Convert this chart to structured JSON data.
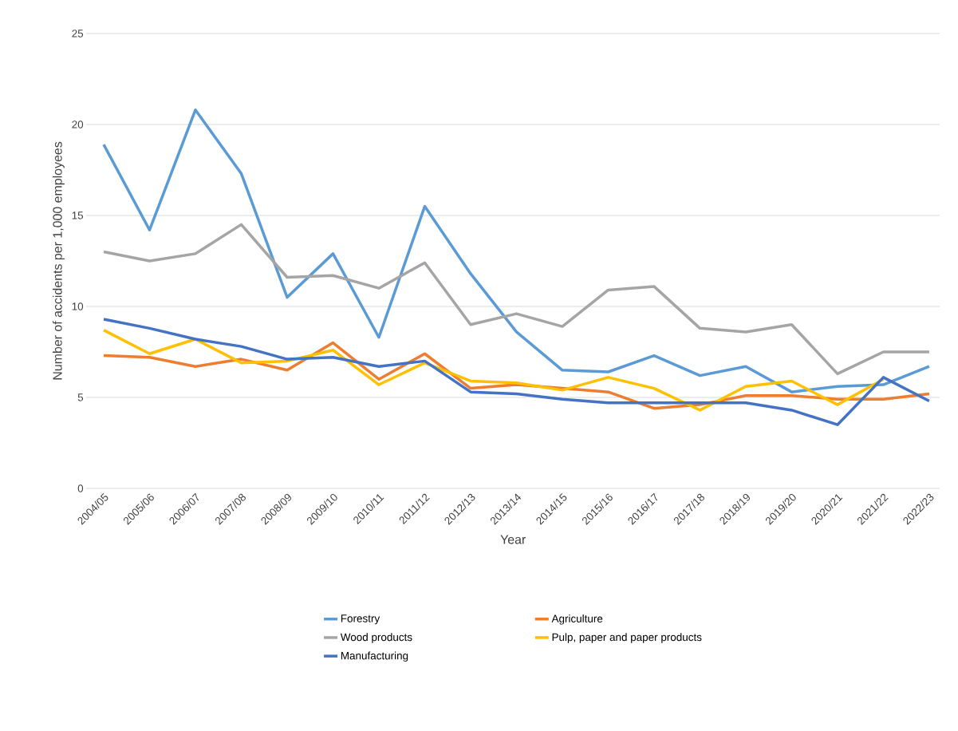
{
  "chart_data": {
    "type": "line",
    "xlabel": "Year",
    "ylabel": "Number of accidents per 1,000 employees",
    "categories": [
      "2004/05",
      "2005/06",
      "2006/07",
      "2007/08",
      "2008/09",
      "2009/10",
      "2010/11",
      "2011/12",
      "2012/13",
      "2013/14",
      "2014/15",
      "2015/16",
      "2016/17",
      "2017/18",
      "2018/19",
      "2019/20",
      "2020/21",
      "2021/22",
      "2022/23"
    ],
    "series": [
      {
        "name": "Forestry",
        "color": "#5b9bd5",
        "values": [
          18.9,
          14.2,
          20.8,
          17.3,
          10.5,
          12.9,
          8.3,
          15.5,
          11.8,
          8.6,
          6.5,
          6.4,
          7.3,
          6.2,
          6.7,
          5.3,
          5.6,
          5.7,
          6.7
        ]
      },
      {
        "name": "Agriculture",
        "color": "#ed7d31",
        "values": [
          7.3,
          7.2,
          6.7,
          7.1,
          6.5,
          8.0,
          6.0,
          7.4,
          5.5,
          5.7,
          5.5,
          5.3,
          4.4,
          4.6,
          5.1,
          5.1,
          4.9,
          4.9,
          5.2
        ]
      },
      {
        "name": "Wood products",
        "color": "#a5a5a5",
        "values": [
          13.0,
          12.5,
          12.9,
          14.5,
          11.6,
          11.7,
          11.0,
          12.4,
          9.0,
          9.6,
          8.9,
          10.9,
          11.1,
          8.8,
          8.6,
          9.0,
          6.3,
          7.5,
          7.5
        ]
      },
      {
        "name": "Pulp, paper and paper products",
        "color": "#ffc000",
        "values": [
          8.7,
          7.4,
          8.2,
          6.9,
          7.0,
          7.6,
          5.7,
          6.9,
          5.9,
          5.8,
          5.4,
          6.1,
          5.5,
          4.3,
          5.6,
          5.9,
          4.6,
          6.0,
          null
        ]
      },
      {
        "name": "Manufacturing",
        "color": "#4472c4",
        "values": [
          9.3,
          8.8,
          8.2,
          7.8,
          7.1,
          7.2,
          6.7,
          7.0,
          5.3,
          5.2,
          4.9,
          4.7,
          4.7,
          4.7,
          4.7,
          4.3,
          3.5,
          6.1,
          4.8
        ]
      }
    ],
    "ylim": [
      0,
      25
    ],
    "yticks": [
      0,
      5,
      10,
      15,
      20,
      25
    ],
    "grid": "y",
    "legend": "bottom",
    "marker": "none",
    "line_style": "solid"
  }
}
